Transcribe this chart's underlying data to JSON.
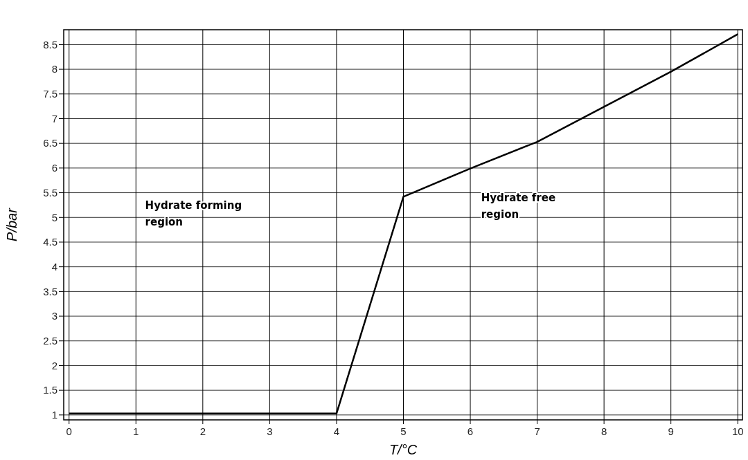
{
  "chart_data": {
    "type": "line",
    "xlabel": "T/°C",
    "ylabel": "P/bar",
    "x": [
      0,
      4,
      5,
      6,
      7,
      8,
      9,
      10
    ],
    "series": [
      {
        "color": "#000000",
        "values": [
          1.03,
          1.03,
          5.42,
          5.99,
          6.53,
          7.24,
          7.95,
          8.71
        ]
      }
    ],
    "xlim": [
      -0.08,
      10.07
    ],
    "ylim": [
      0.9,
      8.8
    ],
    "xticks": [
      0,
      1,
      2,
      3,
      4,
      5,
      6,
      7,
      8,
      9,
      10
    ],
    "yticks": [
      1,
      1.5,
      2,
      2.5,
      3,
      3.5,
      4,
      4.5,
      5,
      5.5,
      6,
      6.5,
      7,
      7.5,
      8,
      8.5
    ],
    "grid": true,
    "marker": "none",
    "line_style": "solid",
    "annotations": [
      "Hydrate forming region",
      "Hydrate free region"
    ]
  }
}
